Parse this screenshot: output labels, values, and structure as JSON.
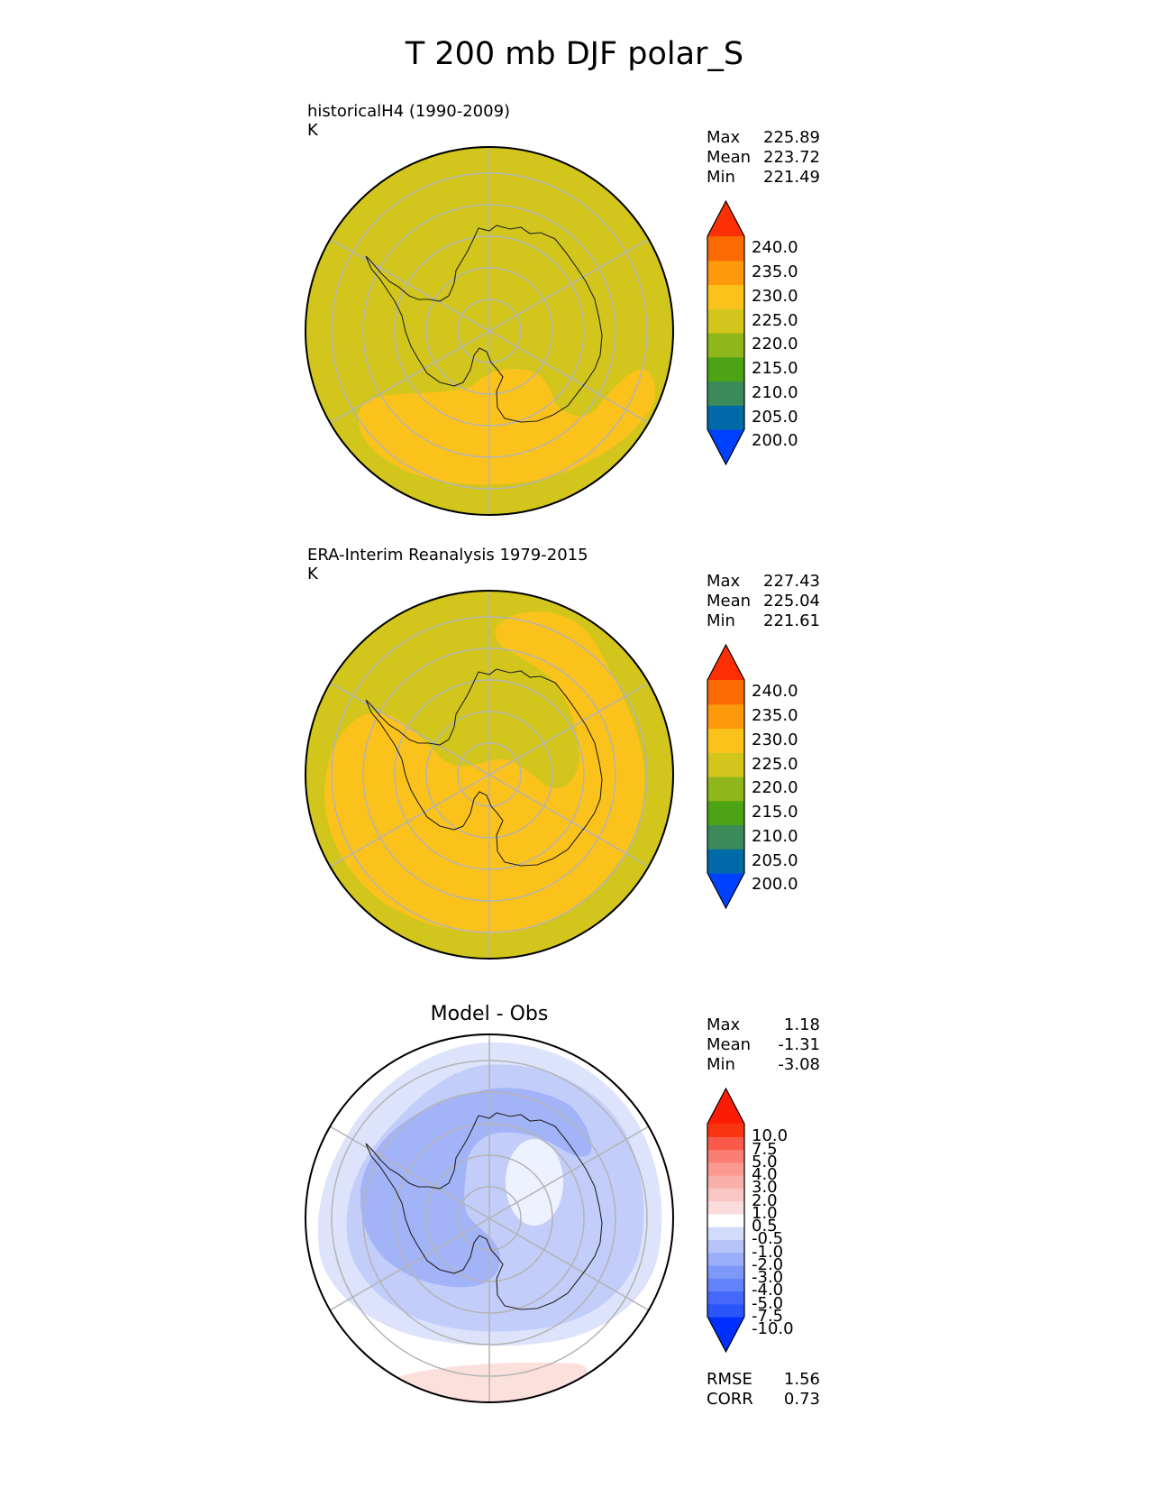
{
  "figure_title": "T 200 mb DJF polar_S",
  "panels": [
    {
      "id": "model",
      "title_line1": "historicalH4 (1990-2009)",
      "title_line2": "K",
      "stats": {
        "max_label": "Max",
        "max": "225.89",
        "mean_label": "Mean",
        "mean": "223.72",
        "min_label": "Min",
        "min": "221.49"
      },
      "colorbar": {
        "ticks": [
          "240.0",
          "235.0",
          "230.0",
          "225.0",
          "220.0",
          "215.0",
          "210.0",
          "205.0",
          "200.0"
        ],
        "colors": [
          "#0040ff",
          "#006aa6",
          "#3a8a5a",
          "#4ca414",
          "#8fb61a",
          "#d2c61c",
          "#fcc21c",
          "#fc9a0c",
          "#fc6a04",
          "#fc2e04"
        ]
      }
    },
    {
      "id": "obs",
      "title_line1": "ERA-Interim Reanalysis 1979-2015",
      "title_line2": "K",
      "stats": {
        "max_label": "Max",
        "max": "227.43",
        "mean_label": "Mean",
        "mean": "225.04",
        "min_label": "Min",
        "min": "221.61"
      },
      "colorbar": {
        "ticks": [
          "240.0",
          "235.0",
          "230.0",
          "225.0",
          "220.0",
          "215.0",
          "210.0",
          "205.0",
          "200.0"
        ],
        "colors": [
          "#0040ff",
          "#006aa6",
          "#3a8a5a",
          "#4ca414",
          "#8fb61a",
          "#d2c61c",
          "#fcc21c",
          "#fc9a0c",
          "#fc6a04",
          "#fc2e04"
        ]
      }
    },
    {
      "id": "diff",
      "title": "Model - Obs",
      "stats": {
        "max_label": "Max",
        "max": "1.18",
        "mean_label": "Mean",
        "mean": "-1.31",
        "min_label": "Min",
        "min": "-3.08"
      },
      "colorbar": {
        "ticks": [
          "10.0",
          "7.5",
          "5.0",
          "4.0",
          "3.0",
          "2.0",
          "1.0",
          "0.5",
          "-0.5",
          "-1.0",
          "-2.0",
          "-3.0",
          "-4.0",
          "-5.0",
          "-7.5",
          "-10.0"
        ],
        "colors": [
          "#0030ff",
          "#2a55fa",
          "#4668fa",
          "#6283fa",
          "#7e98fa",
          "#9aaefa",
          "#b6c4fa",
          "#d2dcfa",
          "#ffffff",
          "#fadcdc",
          "#fac6c4",
          "#fab0aa",
          "#fa9a90",
          "#fa7e72",
          "#fa5a4a",
          "#fa3410",
          "#fa1c04"
        ]
      },
      "metrics": {
        "rmse_label": "RMSE",
        "rmse": "1.56",
        "corr_label": "CORR",
        "corr": "0.73"
      }
    }
  ],
  "chart_data": [
    {
      "type": "heatmap",
      "title": "historicalH4 (1990-2009)",
      "units": "K",
      "projection": "south polar stereographic",
      "field": "T 200 mb DJF",
      "stats": {
        "max": 225.89,
        "mean": 223.72,
        "min": 221.49
      },
      "levels": [
        200,
        205,
        210,
        215,
        220,
        225,
        230,
        235,
        240
      ],
      "extend": "both",
      "grid": true
    },
    {
      "type": "heatmap",
      "title": "ERA-Interim Reanalysis 1979-2015",
      "units": "K",
      "projection": "south polar stereographic",
      "field": "T 200 mb DJF",
      "stats": {
        "max": 227.43,
        "mean": 225.04,
        "min": 221.61
      },
      "levels": [
        200,
        205,
        210,
        215,
        220,
        225,
        230,
        235,
        240
      ],
      "extend": "both",
      "grid": true
    },
    {
      "type": "heatmap",
      "title": "Model - Obs",
      "projection": "south polar stereographic",
      "field": "T 200 mb DJF difference",
      "stats": {
        "max": 1.18,
        "mean": -1.31,
        "min": -3.08
      },
      "levels": [
        -10,
        -7.5,
        -5,
        -4,
        -3,
        -2,
        -1,
        -0.5,
        0.5,
        1,
        2,
        3,
        4,
        5,
        7.5,
        10
      ],
      "extend": "both",
      "rmse": 1.56,
      "corr": 0.73,
      "grid": true
    }
  ]
}
